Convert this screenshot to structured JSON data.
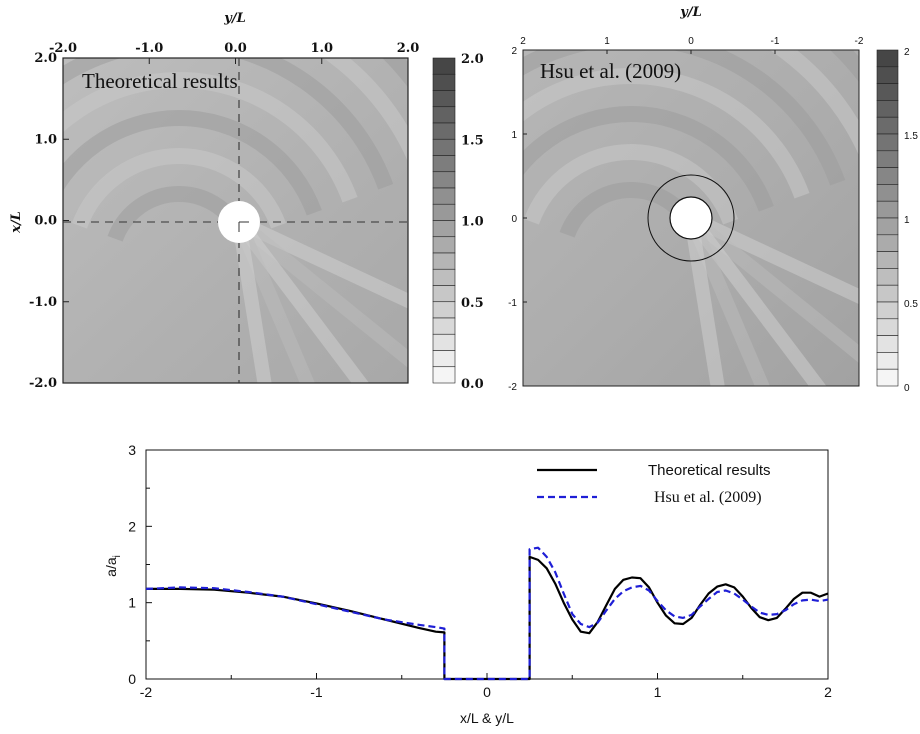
{
  "colors": {
    "theoretical": "#000000",
    "hsu": "#1f1fd6",
    "field_light": "#f2f2f2",
    "field_dark": "#5a5a5a",
    "field_mid": "#a9a9a9"
  },
  "chart_data": [
    {
      "type": "heatmap",
      "panel": "top-left",
      "label": "Theoretical results",
      "xlabel": "y/L",
      "ylabel": "x/L",
      "x_ticks": [
        "-2.0",
        "-1.0",
        "0.0",
        "1.0",
        "2.0"
      ],
      "y_ticks": [
        "2.0",
        "1.0",
        "0.0",
        "-1.0",
        "-2.0"
      ],
      "xlim": [
        -2,
        2
      ],
      "ylim": [
        -2,
        2
      ],
      "colorbar": {
        "ticks": [
          "2.0",
          "1.5",
          "1.0",
          "0.5",
          "0.0"
        ],
        "range": [
          0,
          2
        ],
        "levels": 20
      },
      "cylinder": {
        "center": [
          0,
          0
        ],
        "radius": 0.25
      },
      "dashed_crosshair": true
    },
    {
      "type": "heatmap",
      "panel": "top-right",
      "label": "Hsu et al. (2009)",
      "xlabel": "y/L",
      "x_ticks": [
        "2",
        "1",
        "0",
        "-1",
        "-2"
      ],
      "y_ticks": [
        "2",
        "1",
        "0",
        "-1",
        "-2"
      ],
      "xlim": [
        2,
        -2
      ],
      "ylim": [
        -2,
        2
      ],
      "colorbar": {
        "ticks": [
          "2",
          "1.5",
          "1",
          "0.5",
          "0"
        ],
        "range": [
          0,
          2
        ],
        "levels": 20
      },
      "cylinder": {
        "center": [
          0,
          0
        ],
        "radius": 0.25
      },
      "outer_ring_radius": 0.52
    },
    {
      "type": "line",
      "panel": "bottom",
      "xlabel": "x/L & y/L",
      "ylabel": "a/a",
      "ylabel_sub": "i",
      "xlim": [
        -2,
        2
      ],
      "ylim": [
        0,
        3
      ],
      "x_ticks": [
        "-2",
        "-1",
        "0",
        "1",
        "2"
      ],
      "y_ticks": [
        "0",
        "1",
        "2",
        "3"
      ],
      "legend": "top-right",
      "series": [
        {
          "name": "Theoretical results",
          "style": "solid",
          "x": [
            -2.0,
            -1.8,
            -1.6,
            -1.4,
            -1.2,
            -1.0,
            -0.8,
            -0.6,
            -0.4,
            -0.3,
            -0.25,
            -0.25,
            0.25,
            0.25,
            0.3,
            0.35,
            0.4,
            0.45,
            0.5,
            0.55,
            0.6,
            0.65,
            0.7,
            0.75,
            0.8,
            0.85,
            0.9,
            0.95,
            1.0,
            1.05,
            1.1,
            1.15,
            1.2,
            1.25,
            1.3,
            1.35,
            1.4,
            1.45,
            1.5,
            1.55,
            1.6,
            1.65,
            1.7,
            1.75,
            1.8,
            1.85,
            1.9,
            1.95,
            2.0
          ],
          "y": [
            1.18,
            1.18,
            1.17,
            1.13,
            1.08,
            0.99,
            0.89,
            0.78,
            0.67,
            0.62,
            0.61,
            0.0,
            0.0,
            1.6,
            1.56,
            1.45,
            1.25,
            1.0,
            0.78,
            0.62,
            0.6,
            0.75,
            0.97,
            1.18,
            1.3,
            1.33,
            1.32,
            1.2,
            1.0,
            0.83,
            0.73,
            0.72,
            0.8,
            0.97,
            1.12,
            1.21,
            1.24,
            1.2,
            1.08,
            0.93,
            0.81,
            0.77,
            0.8,
            0.92,
            1.05,
            1.13,
            1.13,
            1.08,
            1.12
          ]
        },
        {
          "name": "Hsu et al. (2009)",
          "style": "dashed",
          "x": [
            -2.0,
            -1.8,
            -1.6,
            -1.4,
            -1.2,
            -1.0,
            -0.8,
            -0.6,
            -0.4,
            -0.3,
            -0.25,
            -0.25,
            0.25,
            0.25,
            0.3,
            0.35,
            0.4,
            0.45,
            0.5,
            0.55,
            0.6,
            0.65,
            0.7,
            0.75,
            0.8,
            0.85,
            0.9,
            0.95,
            1.0,
            1.05,
            1.1,
            1.15,
            1.2,
            1.25,
            1.3,
            1.35,
            1.4,
            1.45,
            1.5,
            1.55,
            1.6,
            1.65,
            1.7,
            1.75,
            1.8,
            1.85,
            1.9,
            1.95,
            2.0
          ],
          "y": [
            1.18,
            1.2,
            1.19,
            1.14,
            1.08,
            0.98,
            0.88,
            0.78,
            0.71,
            0.68,
            0.66,
            0.0,
            0.0,
            1.7,
            1.72,
            1.6,
            1.4,
            1.12,
            0.85,
            0.72,
            0.68,
            0.74,
            0.9,
            1.05,
            1.15,
            1.2,
            1.22,
            1.16,
            1.02,
            0.9,
            0.82,
            0.8,
            0.84,
            0.95,
            1.05,
            1.14,
            1.16,
            1.12,
            1.04,
            0.95,
            0.87,
            0.84,
            0.85,
            0.9,
            0.98,
            1.03,
            1.04,
            1.02,
            1.04
          ]
        }
      ]
    }
  ]
}
